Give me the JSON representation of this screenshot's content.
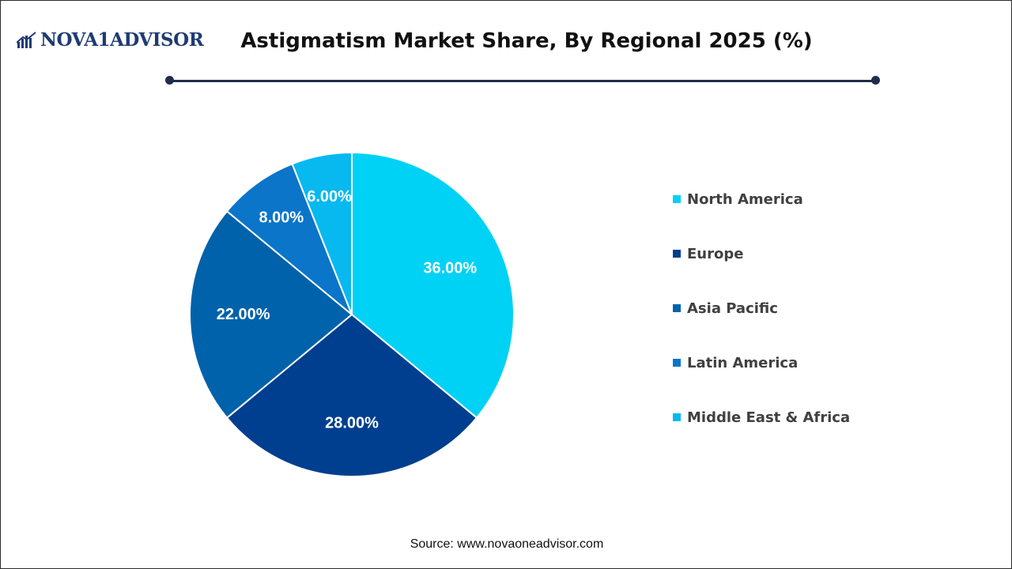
{
  "brand": {
    "logo_text": "NOVA1ADVISOR"
  },
  "source": "Source: www.novaoneadvisor.com",
  "colors": {
    "rule": "#1f2d4d",
    "text": "#404040"
  },
  "chart_data": {
    "type": "pie",
    "title": "Astigmatism Market Share, By Regional 2025 (%)",
    "legend_position": "right",
    "start_angle_deg": 0,
    "direction": "clockwise",
    "slices": [
      {
        "label": "North America",
        "value": 36.0,
        "display": "36.00%",
        "color": "#00d2f5"
      },
      {
        "label": "Europe",
        "value": 28.0,
        "display": "28.00%",
        "color": "#003f8f"
      },
      {
        "label": "Asia Pacific",
        "value": 22.0,
        "display": "22.00%",
        "color": "#0062ab"
      },
      {
        "label": "Latin America",
        "value": 8.0,
        "display": "8.00%",
        "color": "#0a75c9"
      },
      {
        "label": "Middle East & Africa",
        "value": 6.0,
        "display": "6.00%",
        "color": "#07b9ef"
      }
    ]
  }
}
